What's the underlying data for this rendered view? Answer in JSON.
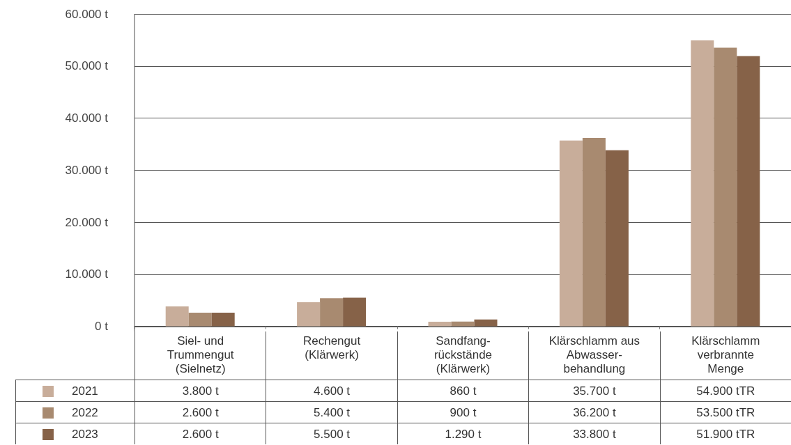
{
  "chart_data": {
    "type": "bar",
    "categories": [
      "Siel- und\nTrummengut\n(Sielnetz)",
      "Rechengut\n(Klärwerk)",
      "Sandfang-\nrückstände\n(Klärwerk)",
      "Klärschlamm aus\nAbwasser-\nbehandlung",
      "Klärschlamm\nverbrannte\nMenge"
    ],
    "series": [
      {
        "name": "2021",
        "color": "#c8ad9a",
        "values": [
          3800,
          4600,
          860,
          35700,
          54900
        ],
        "value_labels": [
          "3.800 t",
          "4.600 t",
          "860 t",
          "35.700 t",
          "54.900 tTR"
        ]
      },
      {
        "name": "2022",
        "color": "#a88a70",
        "values": [
          2600,
          5400,
          900,
          36200,
          53500
        ],
        "value_labels": [
          "2.600 t",
          "5.400 t",
          "900 t",
          "36.200 t",
          "53.500 tTR"
        ]
      },
      {
        "name": "2023",
        "color": "#866248",
        "values": [
          2600,
          5500,
          1290,
          33800,
          51900
        ],
        "value_labels": [
          "2.600 t",
          "5.500 t",
          "1.290 t",
          "33.800 t",
          "51.900 tTR"
        ]
      }
    ],
    "ylim": [
      0,
      60000
    ],
    "yticks": [
      {
        "value": 0,
        "label": "0 t"
      },
      {
        "value": 10000,
        "label": "10.000 t"
      },
      {
        "value": 20000,
        "label": "20.000 t"
      },
      {
        "value": 30000,
        "label": "30.000 t"
      },
      {
        "value": 40000,
        "label": "40.000 t"
      },
      {
        "value": 50000,
        "label": "50.000 t"
      },
      {
        "value": 60000,
        "label": "60.000 t"
      }
    ],
    "grid": "y",
    "legend": "bottom",
    "tick_labels": "y"
  }
}
